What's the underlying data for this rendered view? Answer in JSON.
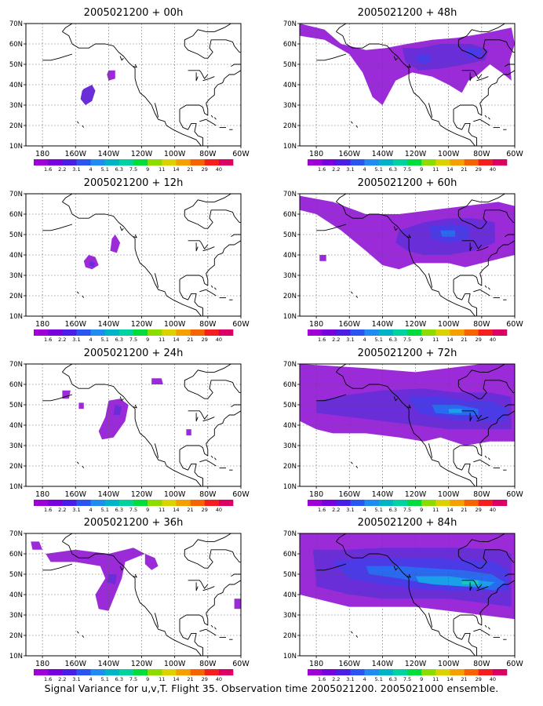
{
  "panel_titles": [
    "2005021200 + 00h",
    "2005021200 + 48h",
    "2005021200 + 12h",
    "2005021200 + 60h",
    "2005021200 + 24h",
    "2005021200 + 72h",
    "2005021200 + 36h",
    "2005021200 + 84h"
  ],
  "lat_labels": [
    "70N",
    "60N",
    "50N",
    "40N",
    "30N",
    "20N",
    "10N"
  ],
  "lon_labels": [
    "180",
    "160W",
    "140W",
    "120W",
    "100W",
    "80W",
    "60W"
  ],
  "colorbar": {
    "labels": [
      "1.6",
      "2.2",
      "3.1",
      "4",
      "5.1",
      "6.3",
      "7.5",
      "9",
      "11",
      "14",
      "21",
      "29",
      "40"
    ],
    "colors": [
      "#9e00d6",
      "#7800dc",
      "#4a1ee6",
      "#2a55f0",
      "#1e8cf0",
      "#00b4c8",
      "#00d2a0",
      "#00dc3c",
      "#8cdc00",
      "#dcd200",
      "#f5a000",
      "#f56400",
      "#f51e1e",
      "#dc0064"
    ]
  },
  "field_colors": {
    "level1": "#9b2bd8",
    "level2": "#6a2ed9",
    "level3": "#4a3be6",
    "level4": "#2a6af0",
    "level5": "#1aa0e8",
    "level6": "#18c6c0"
  },
  "footer": "Signal Variance for u,v,T. Flight 35. Observation time 2005021200. 2005021000 ensemble."
}
